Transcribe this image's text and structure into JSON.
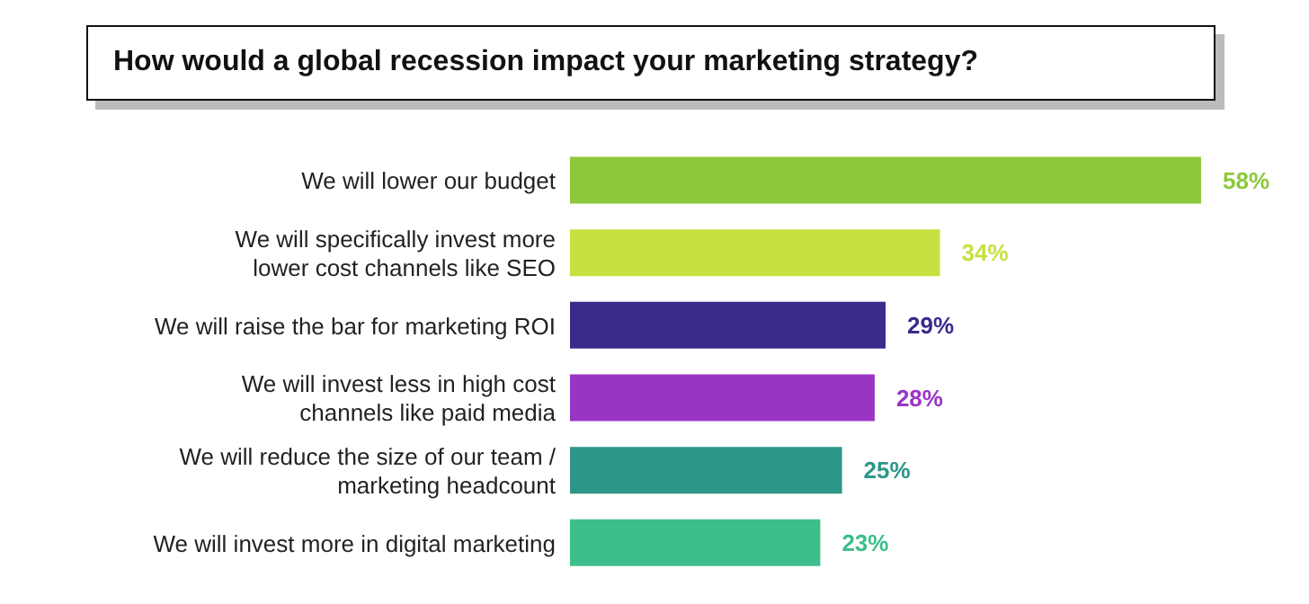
{
  "chart_data": {
    "type": "bar",
    "orientation": "horizontal",
    "title": "How would a global recession impact your marketing strategy?",
    "categories": [
      "We will lower our budget",
      "We will specifically invest more\nlower cost channels like SEO",
      "We will raise the bar for marketing  ROI",
      "We will invest less in high cost\nchannels like paid media",
      "We will reduce the size of our team /\nmarketing headcount",
      "We will invest more in digital marketing"
    ],
    "values": [
      58,
      34,
      29,
      28,
      25,
      23
    ],
    "colors": [
      "#8cc83c",
      "#c8e040",
      "#3a2a8c",
      "#9a34c4",
      "#2e9688",
      "#3cbf8a"
    ],
    "value_labels": [
      "58%",
      "34%",
      "29%",
      "28%",
      "25%",
      "23%"
    ]
  }
}
